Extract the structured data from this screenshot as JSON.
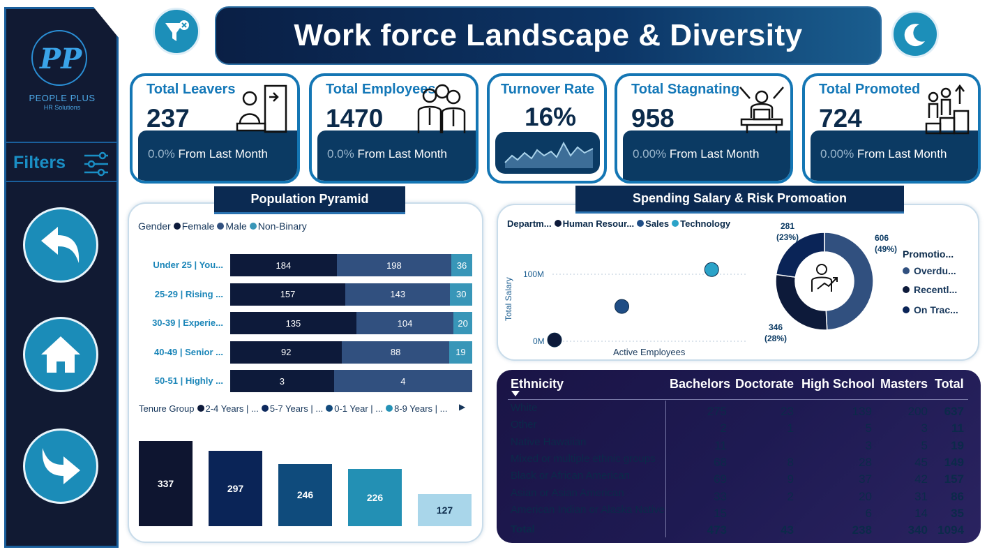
{
  "brand": {
    "mark": "PP",
    "name": "PEOPLE PLUS",
    "sub": "HR Solutions"
  },
  "sidebar": {
    "filters_label": "Filters"
  },
  "title": "Work force Landscape & Diversity",
  "kpis": [
    {
      "title": "Total Leavers",
      "value": "237",
      "pct": "0.0%",
      "change": " From Last Month",
      "icon": "leaving-person-icon"
    },
    {
      "title": "Total Employees",
      "value": "1470",
      "pct": "0.0%",
      "change": " From Last Month",
      "icon": "employees-group-icon"
    },
    {
      "title": "Turnover Rate",
      "value": "16%",
      "icon": "sparkline"
    },
    {
      "title": "Total Stagnating",
      "value": "958",
      "pct": "0.00%",
      "change": " From Last Month",
      "icon": "chained-worker-icon"
    },
    {
      "title": "Total Promoted",
      "value": "724",
      "pct": "0.00%",
      "change": " From Last Month",
      "icon": "promotion-stairs-icon"
    }
  ],
  "pyramid": {
    "header": "Population Pyramid",
    "legend_title": "Gender",
    "legend": [
      {
        "label": "Female",
        "color": "#0d1a3a"
      },
      {
        "label": "Male",
        "color": "#31507f"
      },
      {
        "label": "Non-Binary",
        "color": "#3896b8"
      }
    ],
    "rows": [
      {
        "label": "Under 25 | You...",
        "female": 184,
        "male": 198,
        "nonbinary": 36
      },
      {
        "label": "25-29 | Rising ...",
        "female": 157,
        "male": 143,
        "nonbinary": 30
      },
      {
        "label": "30-39 | Experie...",
        "female": 135,
        "male": 104,
        "nonbinary": 20
      },
      {
        "label": "40-49 | Senior ...",
        "female": 92,
        "male": 88,
        "nonbinary": 19
      },
      {
        "label": "50-51 | Highly ...",
        "female": 3,
        "male": 4,
        "nonbinary": null
      }
    ],
    "tenure_legend_title": "Tenure Group",
    "tenure_legend": [
      {
        "label": "2-4 Years | ...",
        "color": "#0d1a3a"
      },
      {
        "label": "5-7 Years | ...",
        "color": "#0e2a5e"
      },
      {
        "label": "0-1 Year | ...",
        "color": "#134a7c"
      },
      {
        "label": "8-9 Years | ...",
        "color": "#2592b6"
      }
    ],
    "tenure_next": "▶",
    "tenure_bars": [
      {
        "value": 337,
        "color": "#0e1530",
        "text": "#ffffff"
      },
      {
        "value": 297,
        "color": "#0a2457",
        "text": "#ffffff"
      },
      {
        "value": 246,
        "color": "#0f4b7c",
        "text": "#ffffff"
      },
      {
        "value": 226,
        "color": "#2390b4",
        "text": "#ffffff"
      },
      {
        "value": 127,
        "color": "#a9d6ea",
        "text": "#0b2a4a"
      }
    ]
  },
  "spending": {
    "header": "Spending Salary & Risk Promoation",
    "legend_title": "Departm...",
    "legend": [
      {
        "label": "Human Resour...",
        "color": "#0d1a3a"
      },
      {
        "label": "Sales",
        "color": "#1f4d85"
      },
      {
        "label": "Technology",
        "color": "#2ba3c8"
      }
    ],
    "y_axis_label": "Total Salary",
    "x_axis_label": "Active Employees",
    "y_ticks": [
      "100M",
      "0M"
    ]
  },
  "donut": {
    "legend_title": "Promotio...",
    "legend": [
      {
        "label": "Overdu...",
        "color": "#31507f"
      },
      {
        "label": "Recentl...",
        "color": "#0d1a3a"
      },
      {
        "label": "On Trac...",
        "color": "#0a2457"
      }
    ],
    "labels": [
      {
        "value": "606",
        "pct": "(49%)"
      },
      {
        "value": "346",
        "pct": "(28%)"
      },
      {
        "value": "281",
        "pct": "(23%)"
      }
    ]
  },
  "chart_data": [
    {
      "type": "bar",
      "title": "Population Pyramid",
      "categories": [
        "Under 25 | You...",
        "25-29 | Rising ...",
        "30-39 | Experie...",
        "40-49 | Senior ...",
        "50-51 | Highly ..."
      ],
      "series": [
        {
          "name": "Female",
          "values": [
            184,
            157,
            135,
            92,
            3
          ]
        },
        {
          "name": "Male",
          "values": [
            198,
            143,
            104,
            88,
            4
          ]
        },
        {
          "name": "Non-Binary",
          "values": [
            36,
            30,
            20,
            19,
            null
          ]
        }
      ]
    },
    {
      "type": "bar",
      "title": "Tenure Group",
      "categories": [
        "2-4 Years | ...",
        "5-7 Years | ...",
        "0-1 Year | ...",
        "8-9 Years | ...",
        ""
      ],
      "values": [
        337,
        297,
        246,
        226,
        127
      ]
    },
    {
      "type": "scatter",
      "title": "Spending Salary & Risk Promoation",
      "xlabel": "Active Employees",
      "ylabel": "Total Salary",
      "series": [
        {
          "name": "Human Resour...",
          "x": [
            60
          ],
          "y": [
            2
          ]
        },
        {
          "name": "Sales",
          "x": [
            446
          ],
          "y": [
            52
          ]
        },
        {
          "name": "Technology",
          "x": [
            961
          ],
          "y": [
            107
          ]
        }
      ]
    },
    {
      "type": "pie",
      "title": "Promotio...",
      "categories": [
        "Overdu...",
        "Recentl...",
        "On Trac..."
      ],
      "values": [
        606,
        346,
        281
      ]
    }
  ],
  "table": {
    "headers": [
      "Ethnicity",
      "Bachelors",
      "Doctorate",
      "High School",
      "Masters",
      "Total"
    ],
    "rows": [
      [
        "White",
        "275",
        "23",
        "139",
        "200",
        "637"
      ],
      [
        "Other",
        "2",
        "1",
        "5",
        "3",
        "11"
      ],
      [
        "Native Hawaiian",
        "11",
        "",
        "3",
        "5",
        "19"
      ],
      [
        "Mixed or multiple ethnic groups",
        "68",
        "8",
        "28",
        "45",
        "149"
      ],
      [
        "Black or African American",
        "69",
        "9",
        "37",
        "42",
        "157"
      ],
      [
        "Asian or Asian American",
        "33",
        "2",
        "20",
        "31",
        "86"
      ],
      [
        "American Indian or Alaska Native",
        "15",
        "",
        "6",
        "14",
        "35"
      ]
    ],
    "total": [
      "Total",
      "473",
      "43",
      "238",
      "340",
      "1094"
    ]
  }
}
